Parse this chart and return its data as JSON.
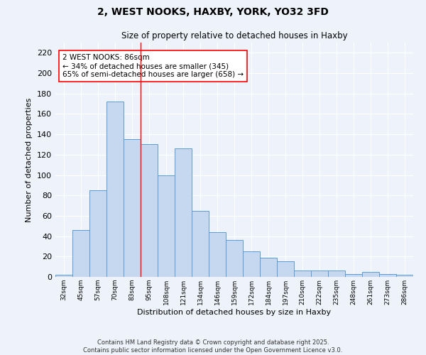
{
  "title_line1": "2, WEST NOOKS, HAXBY, YORK, YO32 3FD",
  "title_line2": "Size of property relative to detached houses in Haxby",
  "xlabel": "Distribution of detached houses by size in Haxby",
  "ylabel": "Number of detached properties",
  "categories": [
    "32sqm",
    "45sqm",
    "57sqm",
    "70sqm",
    "83sqm",
    "95sqm",
    "108sqm",
    "121sqm",
    "134sqm",
    "146sqm",
    "159sqm",
    "172sqm",
    "184sqm",
    "197sqm",
    "210sqm",
    "222sqm",
    "235sqm",
    "248sqm",
    "261sqm",
    "273sqm",
    "286sqm"
  ],
  "values": [
    2,
    46,
    85,
    172,
    135,
    130,
    100,
    126,
    65,
    44,
    36,
    25,
    19,
    15,
    6,
    6,
    6,
    3,
    5,
    3,
    2
  ],
  "bar_color": "#c5d8f0",
  "bar_edge_color": "#5b9bd5",
  "bar_linewidth": 0.7,
  "annotation_text": "2 WEST NOOKS: 86sqm\n← 34% of detached houses are smaller (345)\n65% of semi-detached houses are larger (658) →",
  "redline_x": 4.5,
  "ylim": [
    0,
    230
  ],
  "yticks": [
    0,
    20,
    40,
    60,
    80,
    100,
    120,
    140,
    160,
    180,
    200,
    220
  ],
  "background_color": "#eef2fa",
  "grid_color": "#ffffff",
  "footer_line1": "Contains HM Land Registry data © Crown copyright and database right 2025.",
  "footer_line2": "Contains public sector information licensed under the Open Government Licence v3.0."
}
